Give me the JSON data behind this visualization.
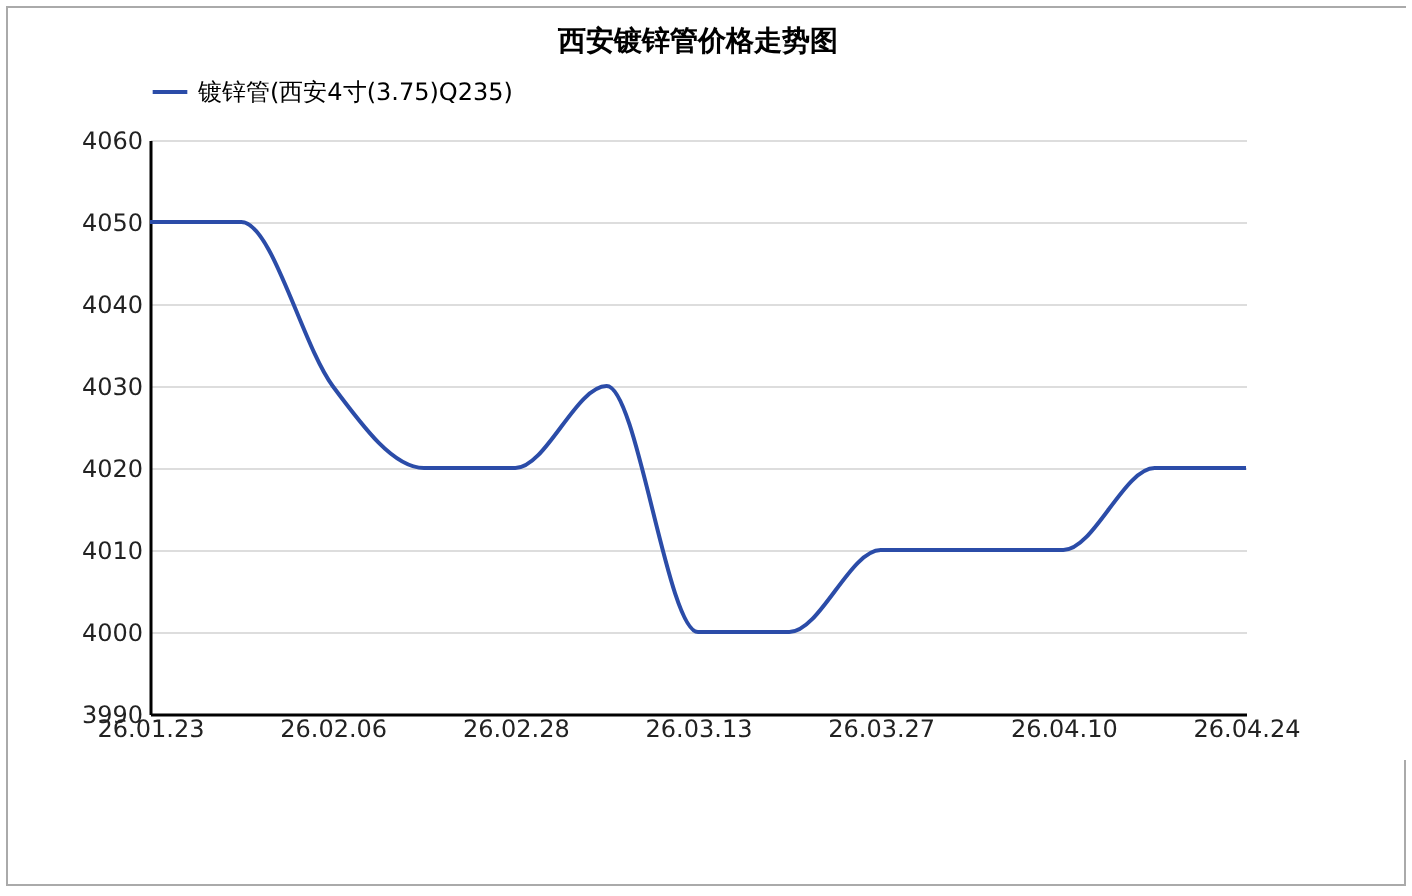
{
  "chart_data": {
    "type": "line",
    "title": "西安镀锌管价格走势图",
    "categories": [
      "26.01.23",
      null,
      "26.02.06",
      null,
      "26.02.28",
      null,
      "26.03.13",
      null,
      "26.03.27",
      null,
      "26.04.10",
      null,
      "26.04.24"
    ],
    "series": [
      {
        "name": "镀锌管(西安4寸(3.75)Q235)",
        "color": "#2b4ca8",
        "values": [
          4050,
          4050,
          4030,
          4020,
          4020,
          4030,
          4000,
          4000,
          4010,
          4010,
          4010,
          4020,
          4020
        ]
      }
    ],
    "ylim": [
      3990,
      4060
    ],
    "yticks": [
      3990,
      4000,
      4010,
      4020,
      4030,
      4040,
      4050,
      4060
    ],
    "grid": "y",
    "legend": "top",
    "marker": "none",
    "line_style": "solid"
  }
}
